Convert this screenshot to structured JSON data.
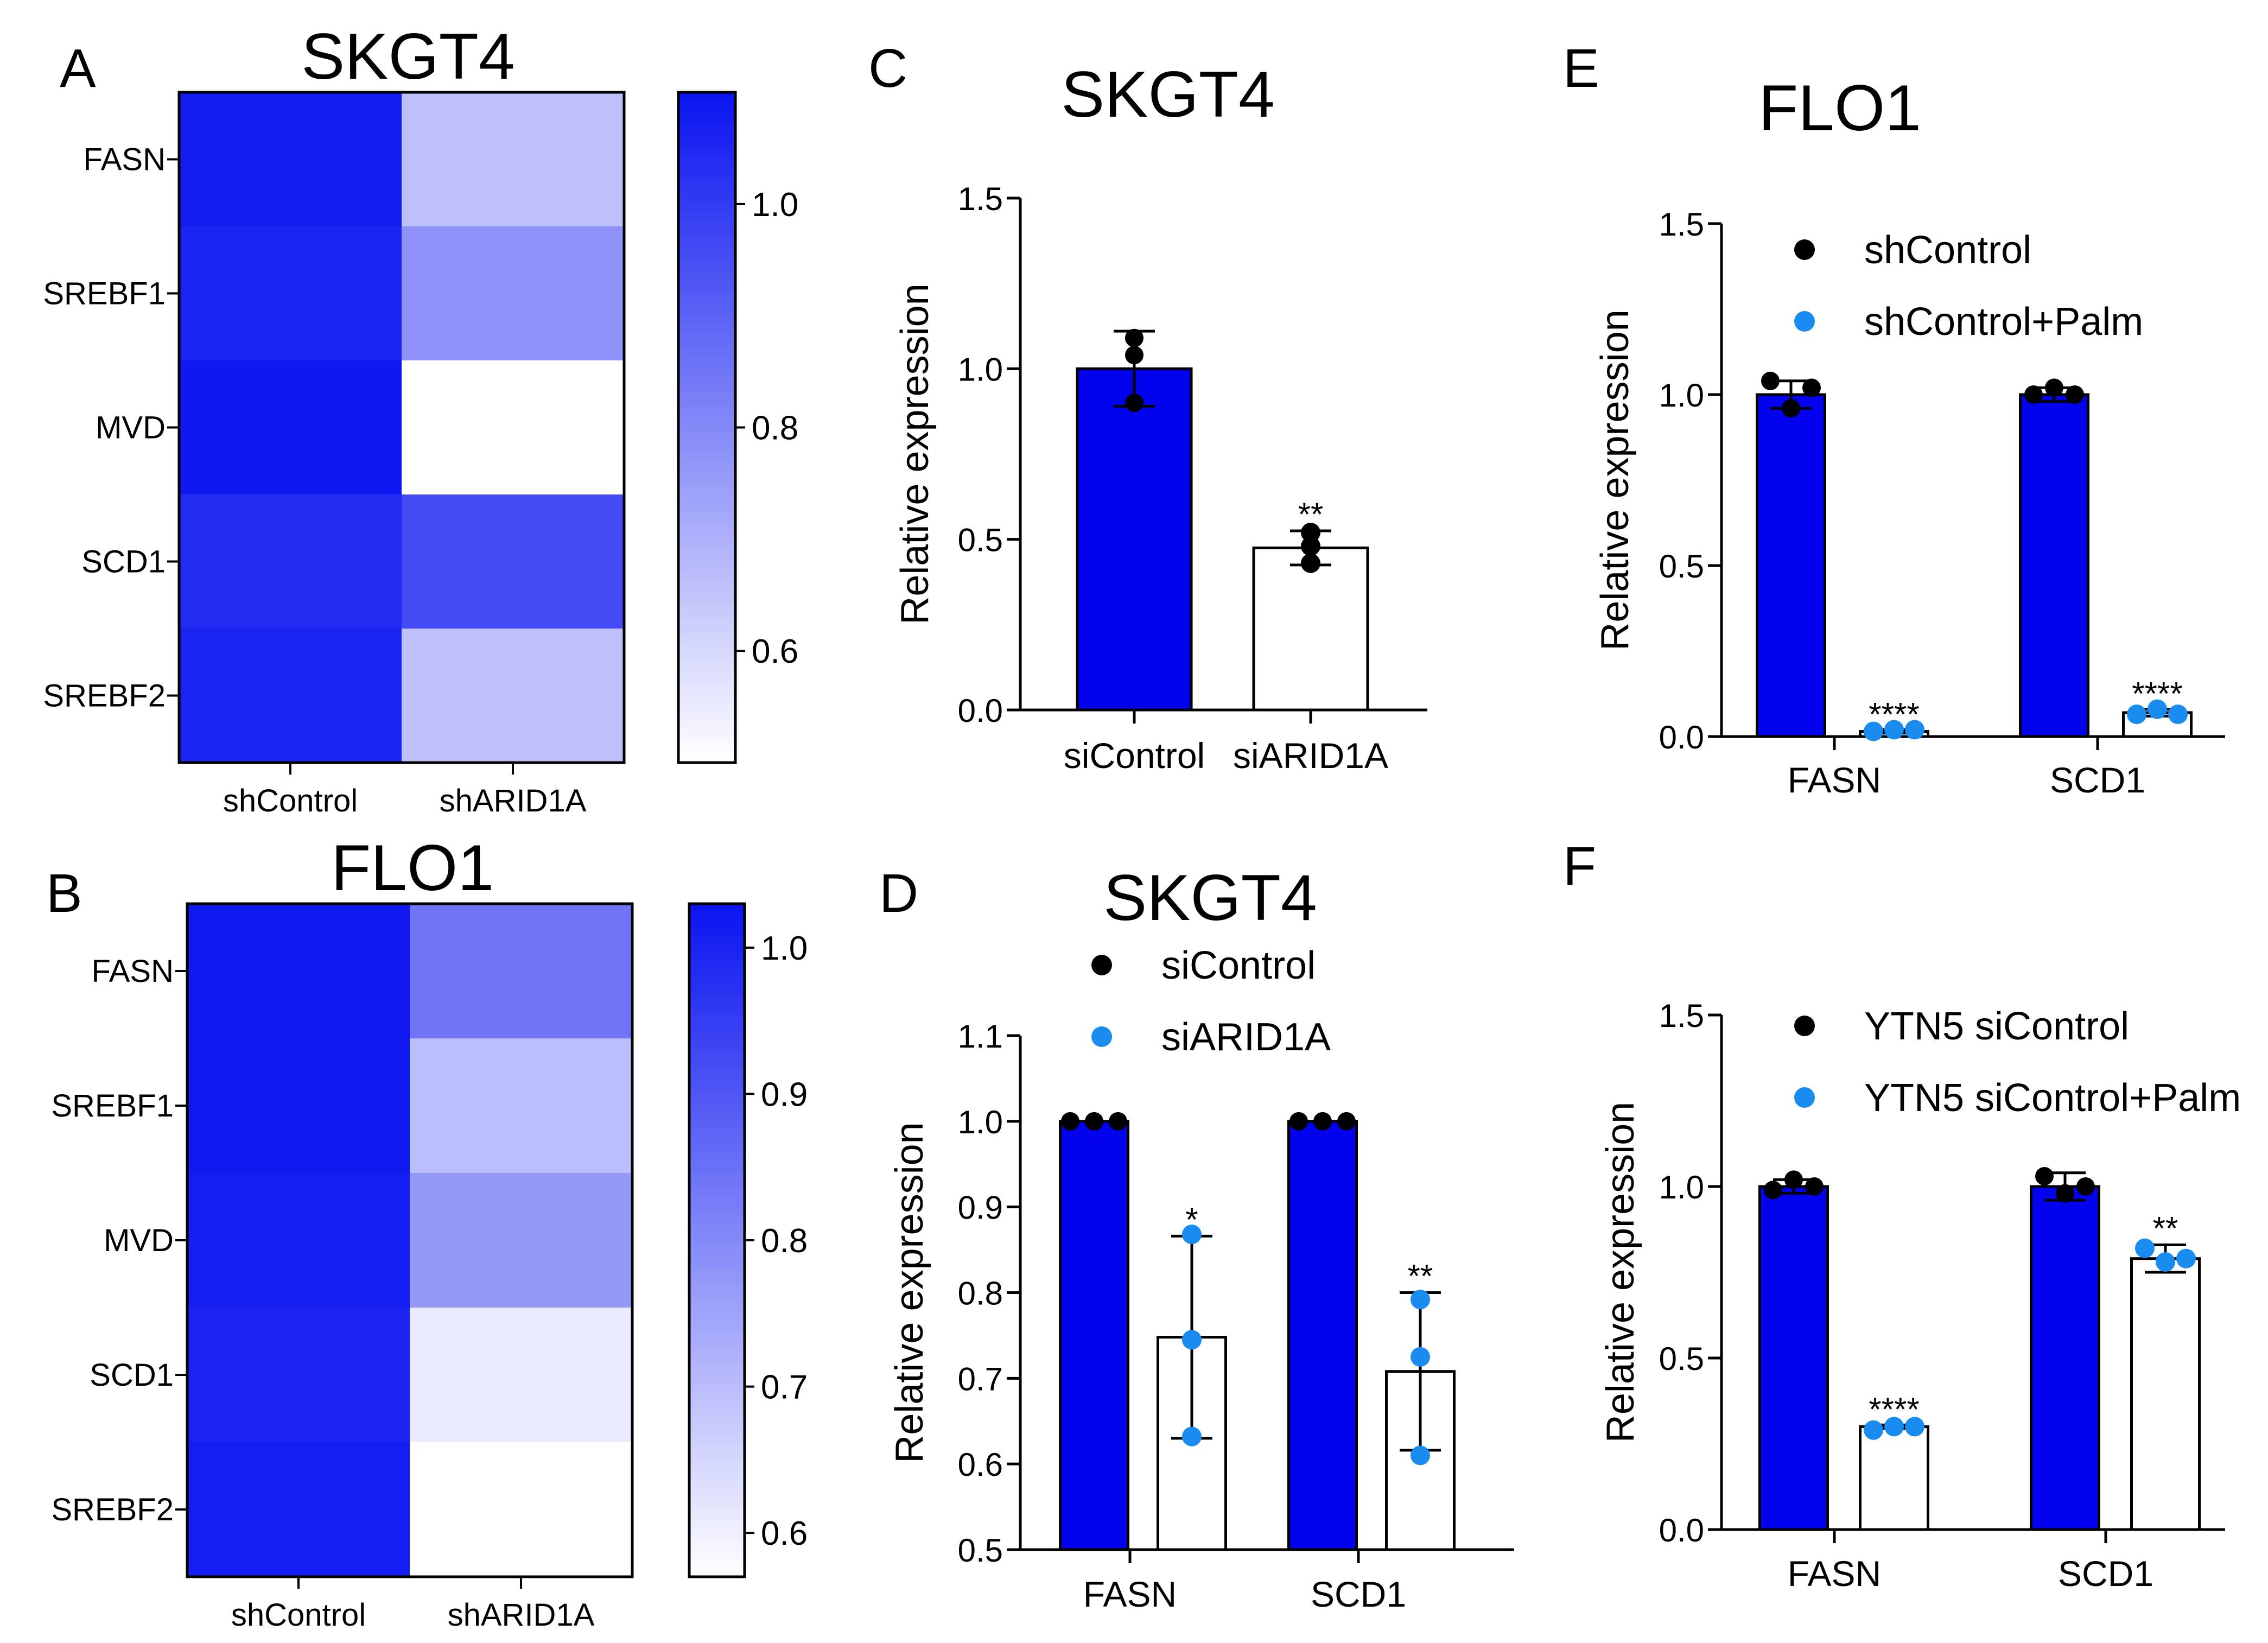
{
  "colors": {
    "bar_blue": "#0202ee",
    "dot_blue": "#1a8cf0",
    "hm_max": "#0a14f0",
    "hm_min": "#ffffff"
  },
  "chart_data": [
    {
      "panel": "A",
      "type": "heatmap",
      "title": "SKGT4",
      "rows": [
        "FASN",
        "SREBF1",
        "MVD",
        "SCD1",
        "SREBF2"
      ],
      "columns": [
        "shControl",
        "shARID1A"
      ],
      "values": [
        [
          1.08,
          0.66
        ],
        [
          1.06,
          0.78
        ],
        [
          1.09,
          0.5
        ],
        [
          1.04,
          0.96
        ],
        [
          1.06,
          0.66
        ]
      ],
      "colorbar": {
        "min": 0.5,
        "max": 1.1,
        "ticks": [
          "1.0",
          "0.8",
          "0.6"
        ],
        "tick_values": [
          1.0,
          0.8,
          0.6
        ]
      }
    },
    {
      "panel": "B",
      "type": "heatmap",
      "title": "FLO1",
      "rows": [
        "FASN",
        "SREBF1",
        "MVD",
        "SCD1",
        "SREBF2"
      ],
      "columns": [
        "shControl",
        "shARID1A"
      ],
      "values": [
        [
          1.02,
          0.84
        ],
        [
          1.02,
          0.7
        ],
        [
          1.01,
          0.77
        ],
        [
          1.0,
          0.61
        ],
        [
          1.01,
          0.57
        ]
      ],
      "colorbar": {
        "min": 0.57,
        "max": 1.03,
        "ticks": [
          "1.0",
          "0.9",
          "0.8",
          "0.7",
          "0.6"
        ],
        "tick_values": [
          1.0,
          0.9,
          0.8,
          0.7,
          0.6
        ]
      }
    },
    {
      "panel": "C",
      "type": "bar",
      "title": "SKGT4",
      "ylabel": "Relative expression",
      "ylim": [
        0,
        1.5
      ],
      "yticks": [
        "0.0",
        "0.5",
        "1.0",
        "1.5"
      ],
      "ytick_values": [
        0,
        0.5,
        1.0,
        1.5
      ],
      "categories": [
        "siControl",
        "siARID1A"
      ],
      "bars": [
        {
          "category": "siControl",
          "value": 1.0,
          "error": 0.11,
          "fill": "blue",
          "points": [
            1.09,
            1.04,
            0.9
          ],
          "significance": ""
        },
        {
          "category": "siARID1A",
          "value": 0.475,
          "error": 0.05,
          "fill": "white",
          "points": [
            0.52,
            0.48,
            0.43
          ],
          "significance": "**"
        }
      ]
    },
    {
      "panel": "D",
      "type": "bar",
      "title": "SKGT4",
      "ylabel": "Relative expression",
      "ylim": [
        0.5,
        1.1
      ],
      "yticks": [
        "0.5",
        "0.6",
        "0.7",
        "0.8",
        "0.9",
        "1.0",
        "1.1"
      ],
      "ytick_values": [
        0.5,
        0.6,
        0.7,
        0.8,
        0.9,
        1.0,
        1.1
      ],
      "categories": [
        "FASN",
        "SCD1"
      ],
      "legend": [
        "siControl",
        "siARID1A"
      ],
      "bars": [
        {
          "category": "FASN",
          "value": 1.0,
          "error": 0,
          "fill": "blue",
          "points": [
            1.0,
            1.0,
            1.0
          ],
          "significance": ""
        },
        {
          "category": "FASN",
          "value": 0.748,
          "error": 0.118,
          "fill": "white",
          "points": [
            0.868,
            0.745,
            0.632
          ],
          "significance": "*"
        },
        {
          "category": "SCD1",
          "value": 1.0,
          "error": 0,
          "fill": "blue",
          "points": [
            1.0,
            1.0,
            1.0
          ],
          "significance": ""
        },
        {
          "category": "SCD1",
          "value": 0.708,
          "error": 0.092,
          "fill": "white",
          "points": [
            0.792,
            0.725,
            0.61
          ],
          "significance": "**"
        }
      ]
    },
    {
      "panel": "E",
      "type": "bar",
      "title": "FLO1",
      "ylabel": "Relative expression",
      "ylim": [
        0,
        1.5
      ],
      "yticks": [
        "0.0",
        "0.5",
        "1.0",
        "1.5"
      ],
      "ytick_values": [
        0,
        0.5,
        1.0,
        1.5
      ],
      "categories": [
        "FASN",
        "SCD1"
      ],
      "legend": [
        "shControl",
        "shControl+Palm"
      ],
      "bars": [
        {
          "category": "FASN",
          "value": 1.0,
          "error": 0.04,
          "fill": "blue",
          "points": [
            1.04,
            0.96,
            1.02
          ],
          "significance": ""
        },
        {
          "category": "FASN",
          "value": 0.015,
          "error": 0.005,
          "fill": "white",
          "points": [
            0.015,
            0.02,
            0.02
          ],
          "significance": "****"
        },
        {
          "category": "SCD1",
          "value": 1.0,
          "error": 0.02,
          "fill": "blue",
          "points": [
            1.0,
            1.02,
            1.0
          ],
          "significance": ""
        },
        {
          "category": "SCD1",
          "value": 0.07,
          "error": 0.01,
          "fill": "white",
          "points": [
            0.065,
            0.08,
            0.065
          ],
          "significance": "****"
        }
      ]
    },
    {
      "panel": "F",
      "type": "bar",
      "title": "",
      "ylabel": "Relative expression",
      "ylim": [
        0,
        1.5
      ],
      "yticks": [
        "0.0",
        "0.5",
        "1.0",
        "1.5"
      ],
      "ytick_values": [
        0,
        0.5,
        1.0,
        1.5
      ],
      "categories": [
        "FASN",
        "SCD1"
      ],
      "legend": [
        "YTN5 siControl",
        "YTN5 siControl+Palm"
      ],
      "bars": [
        {
          "category": "FASN",
          "value": 1.0,
          "error": 0.02,
          "fill": "blue",
          "points": [
            0.99,
            1.02,
            1.0
          ],
          "significance": ""
        },
        {
          "category": "FASN",
          "value": 0.3,
          "error": 0.005,
          "fill": "white",
          "points": [
            0.29,
            0.3,
            0.3
          ],
          "significance": "****"
        },
        {
          "category": "SCD1",
          "value": 1.0,
          "error": 0.04,
          "fill": "blue",
          "points": [
            1.03,
            0.98,
            1.0
          ],
          "significance": ""
        },
        {
          "category": "SCD1",
          "value": 0.79,
          "error": 0.04,
          "fill": "white",
          "points": [
            0.82,
            0.78,
            0.79
          ],
          "significance": "**"
        }
      ]
    }
  ]
}
